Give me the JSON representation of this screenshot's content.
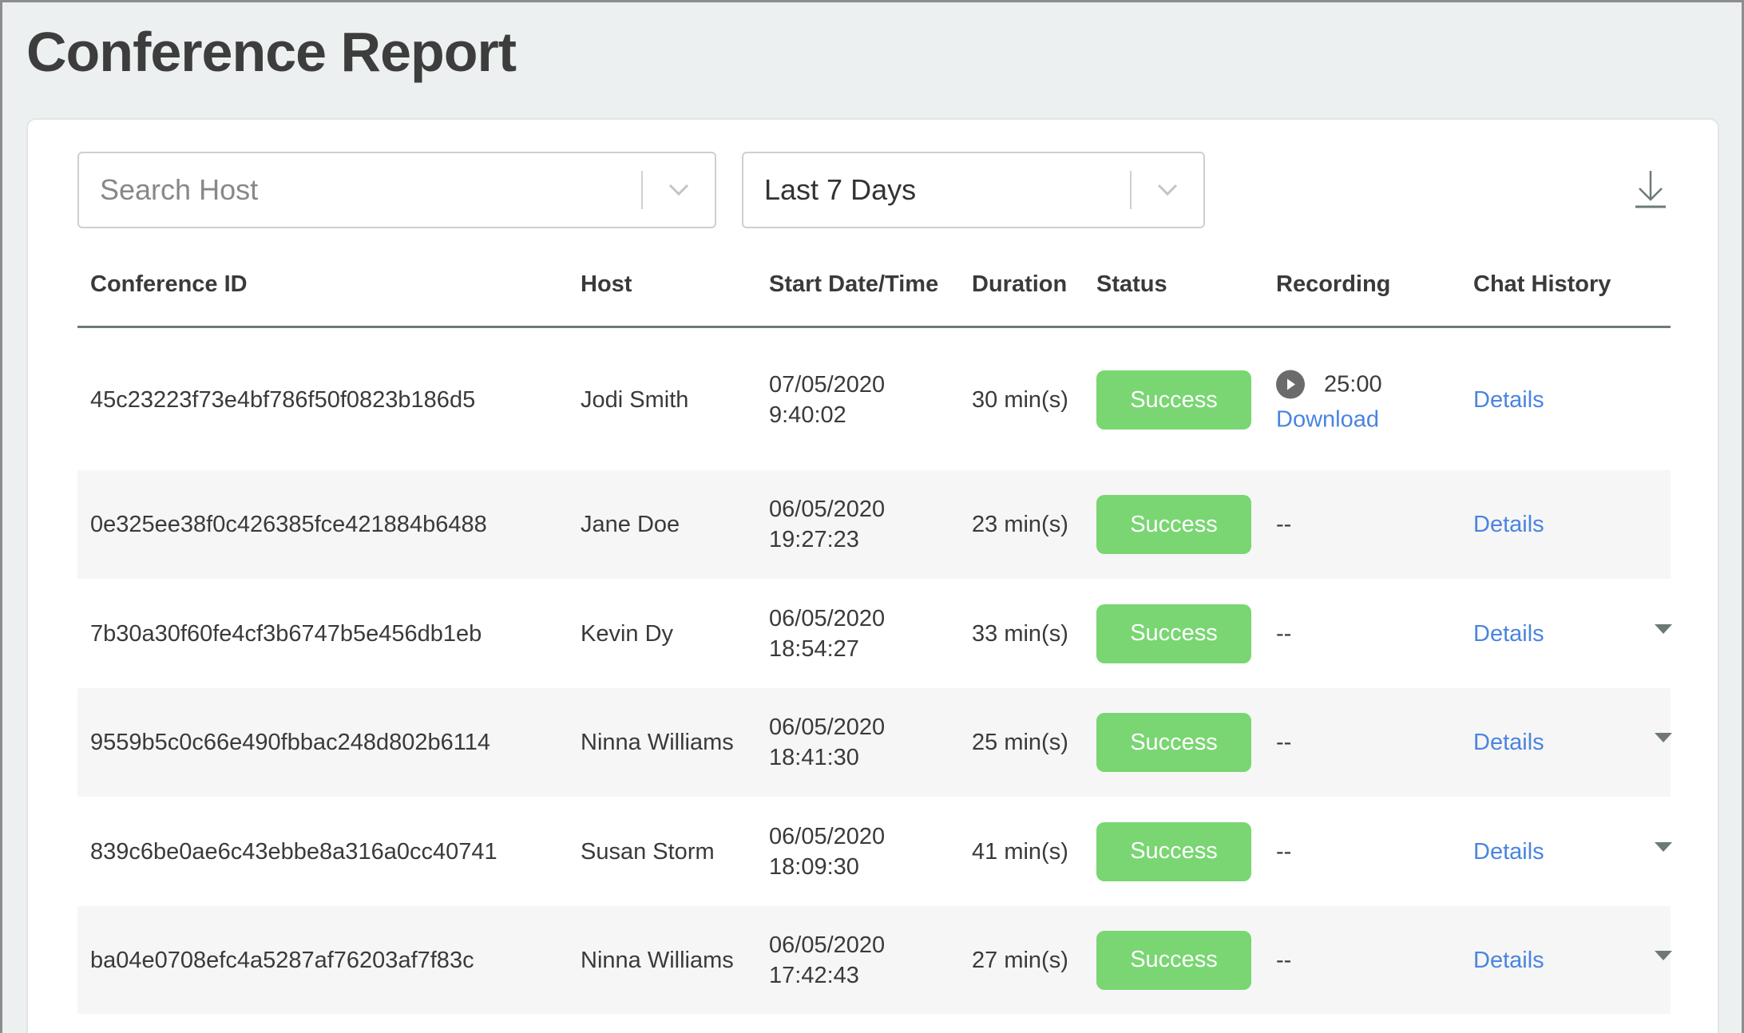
{
  "title": "Conference Report",
  "filters": {
    "host_placeholder": "Search Host",
    "range_value": "Last 7 Days"
  },
  "columns": [
    "Conference ID",
    "Host",
    "Start Date/Time",
    "Duration",
    "Status",
    "Recording",
    "Chat History"
  ],
  "colors": {
    "success": "#79d672",
    "link": "#4a84e0"
  },
  "rows": [
    {
      "id": "45c23223f73e4bf786f50f0823b186d5",
      "host": "Jodi Smith",
      "date": "07/05/2020",
      "time": "9:40:02",
      "duration": "30 min(s)",
      "status": "Success",
      "recording": {
        "length": "25:00",
        "download": "Download"
      },
      "chat": "Details",
      "expandable": false
    },
    {
      "id": "0e325ee38f0c426385fce421884b6488",
      "host": "Jane Doe",
      "date": "06/05/2020",
      "time": "19:27:23",
      "duration": "23 min(s)",
      "status": "Success",
      "recording_none": "--",
      "chat": "Details",
      "expandable": false
    },
    {
      "id": "7b30a30f60fe4cf3b6747b5e456db1eb",
      "host": "Kevin Dy",
      "date": "06/05/2020",
      "time": "18:54:27",
      "duration": "33 min(s)",
      "status": "Success",
      "recording_none": "--",
      "chat": "Details",
      "expandable": true
    },
    {
      "id": "9559b5c0c66e490fbbac248d802b6114",
      "host": "Ninna Williams",
      "date": "06/05/2020",
      "time": "18:41:30",
      "duration": "25 min(s)",
      "status": "Success",
      "recording_none": "--",
      "chat": "Details",
      "expandable": true
    },
    {
      "id": "839c6be0ae6c43ebbe8a316a0cc40741",
      "host": "Susan Storm",
      "date": "06/05/2020",
      "time": "18:09:30",
      "duration": "41 min(s)",
      "status": "Success",
      "recording_none": "--",
      "chat": "Details",
      "expandable": true
    },
    {
      "id": "ba04e0708efc4a5287af76203af7f83c",
      "host": "Ninna Williams",
      "date": "06/05/2020",
      "time": "17:42:43",
      "duration": "27 min(s)",
      "status": "Success",
      "recording_none": "--",
      "chat": "Details",
      "expandable": true
    }
  ]
}
